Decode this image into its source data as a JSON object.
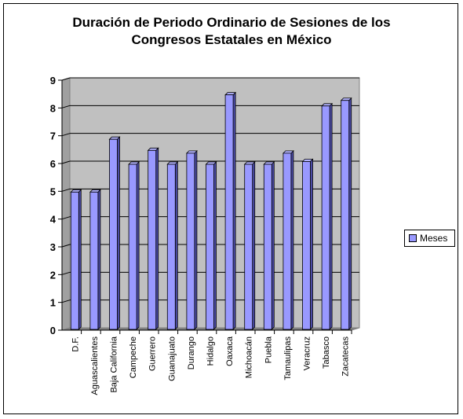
{
  "chart_data": {
    "type": "bar",
    "title_lines": [
      "Duración de Periodo Ordinario de Sesiones de los",
      "Congresos Estatales en México"
    ],
    "categories": [
      "D.F.",
      "Aguascalientes",
      "Baja California",
      "Campeche",
      "Guerrero",
      "Guanajuato",
      "Durango",
      "Hidalgo",
      "Oaxaca",
      "Michoacán",
      "Puebla",
      "Tamaulipas",
      "Veracruz",
      "Tabasco",
      "Zacatecas"
    ],
    "series": [
      {
        "name": "Meses",
        "color": "#9999ff",
        "values": [
          5,
          5,
          6.9,
          6,
          6.5,
          6,
          6.4,
          6,
          8.5,
          6,
          6,
          6.4,
          6.1,
          8.1,
          8.3
        ]
      }
    ],
    "yticks": [
      "0",
      "1",
      "2",
      "3",
      "4",
      "5",
      "6",
      "7",
      "8",
      "9"
    ],
    "ylim": [
      0,
      9
    ],
    "grid": true,
    "legend_position": "right",
    "plot_background": "#c0c0c0"
  }
}
